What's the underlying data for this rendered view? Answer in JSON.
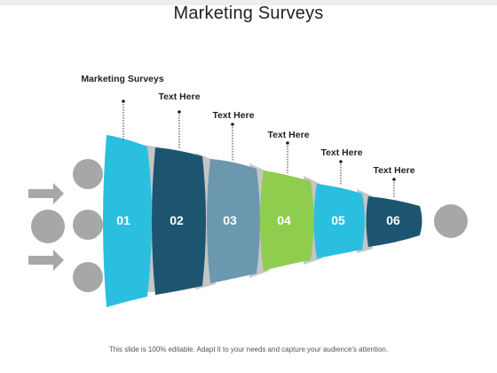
{
  "slide": {
    "title": "Marketing Surveys",
    "footer": "This slide is 100% editable. Adapt it to your needs and capture your audience's attention."
  },
  "diagram": {
    "main_label": "Marketing Surveys",
    "segments": [
      {
        "number": "01",
        "color": "#2bbfdf",
        "callout": "Marketing Surveys"
      },
      {
        "number": "02",
        "color": "#1d5570",
        "callout": "Text Here"
      },
      {
        "number": "03",
        "color": "#6b98ae",
        "callout": "Text Here"
      },
      {
        "number": "04",
        "color": "#8fcd4f",
        "callout": "Text Here"
      },
      {
        "number": "05",
        "color": "#2bbfdf",
        "callout": "Text Here"
      },
      {
        "number": "06",
        "color": "#1d5570",
        "callout": "Text Here"
      }
    ],
    "colors": {
      "connector": "#c5c5c5",
      "circle": "#a7a7a7",
      "arrow": "#a7a7a7"
    }
  }
}
